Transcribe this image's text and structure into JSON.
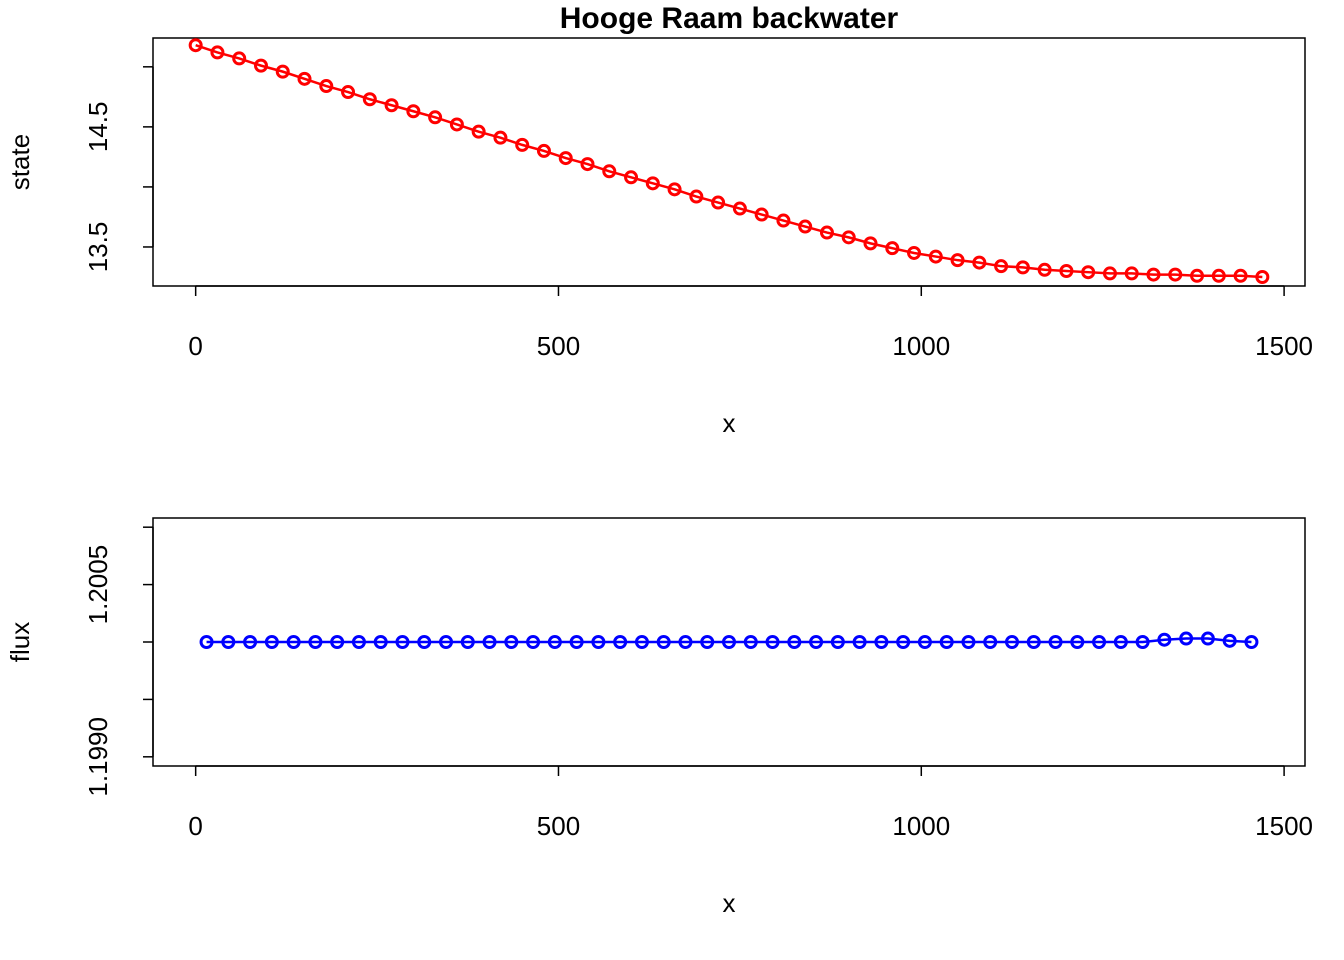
{
  "chart_data": [
    {
      "type": "line",
      "title": "Hooge Raam backwater",
      "xlabel": "x",
      "ylabel": "state",
      "color": "#ff0000",
      "x": [
        0,
        30,
        60,
        90,
        120,
        150,
        180,
        210,
        240,
        270,
        300,
        330,
        360,
        390,
        420,
        450,
        480,
        510,
        540,
        570,
        600,
        630,
        660,
        690,
        720,
        750,
        780,
        810,
        840,
        870,
        900,
        930,
        960,
        990,
        1020,
        1050,
        1080,
        1110,
        1140,
        1170,
        1200,
        1230,
        1260,
        1290,
        1320,
        1350,
        1380,
        1410,
        1440,
        1470
      ],
      "values": [
        15.18,
        15.12,
        15.07,
        15.01,
        14.96,
        14.9,
        14.84,
        14.79,
        14.73,
        14.68,
        14.63,
        14.58,
        14.52,
        14.46,
        14.41,
        14.35,
        14.3,
        14.24,
        14.19,
        14.13,
        14.08,
        14.03,
        13.98,
        13.92,
        13.87,
        13.82,
        13.77,
        13.72,
        13.67,
        13.62,
        13.58,
        13.53,
        13.49,
        13.45,
        13.42,
        13.39,
        13.37,
        13.34,
        13.33,
        13.31,
        13.3,
        13.29,
        13.28,
        13.28,
        13.27,
        13.27,
        13.26,
        13.26,
        13.26,
        13.25
      ],
      "xlim": [
        -58.8,
        1528.8
      ],
      "ylim": [
        13.175,
        15.24
      ],
      "xticks": [
        0,
        500,
        1000,
        1500
      ],
      "yticks": [
        13.5,
        14.5
      ],
      "yticks_minor": [
        14,
        15
      ]
    },
    {
      "type": "line",
      "xlabel": "x",
      "ylabel": "flux",
      "color": "#0000ff",
      "x": [
        15,
        45,
        75,
        105,
        135,
        165,
        195,
        225,
        255,
        285,
        315,
        345,
        375,
        405,
        435,
        465,
        495,
        525,
        555,
        585,
        615,
        645,
        675,
        705,
        735,
        765,
        795,
        825,
        855,
        885,
        915,
        945,
        975,
        1005,
        1035,
        1065,
        1095,
        1125,
        1155,
        1185,
        1215,
        1245,
        1275,
        1305,
        1335,
        1365,
        1395,
        1425,
        1455
      ],
      "values": [
        1.2,
        1.2,
        1.2,
        1.2,
        1.2,
        1.2,
        1.2,
        1.2,
        1.2,
        1.2,
        1.2,
        1.2,
        1.2,
        1.2,
        1.2,
        1.2,
        1.2,
        1.2,
        1.2,
        1.2,
        1.2,
        1.2,
        1.2,
        1.2,
        1.2,
        1.2,
        1.2,
        1.2,
        1.2,
        1.2,
        1.2,
        1.2,
        1.2,
        1.2,
        1.2,
        1.2,
        1.2,
        1.2,
        1.2,
        1.2,
        1.2,
        1.2,
        1.2,
        1.2,
        1.20002,
        1.20003,
        1.20003,
        1.20001,
        1.2
      ],
      "xlim": [
        -58.8,
        1528.8
      ],
      "ylim": [
        1.19892,
        1.20108
      ],
      "xticks": [
        0,
        500,
        1000,
        1500
      ],
      "yticks": [
        {
          "value": 1.199,
          "label": "1.1990"
        },
        1.2005
      ],
      "yticks_minor": [
        1.1995,
        1.2,
        1.201
      ]
    }
  ]
}
